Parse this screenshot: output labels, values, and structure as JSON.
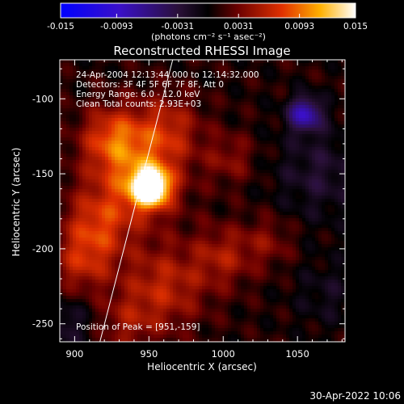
{
  "chart_data": {
    "type": "heatmap",
    "title": "Reconstructed RHESSI Image",
    "xlabel": "Heliocentric X (arcsec)",
    "ylabel": "Heliocentric Y (arcsec)",
    "xlim": [
      890,
      1082
    ],
    "ylim": [
      -262,
      -74
    ],
    "x_ticks": [
      900,
      950,
      1000,
      1050
    ],
    "y_ticks": [
      -100,
      -150,
      -200,
      -250
    ],
    "x_tick_labels": [
      "900",
      "950",
      "1000",
      "1050"
    ],
    "y_tick_labels": [
      "-100",
      "-150",
      "-200",
      "-250"
    ],
    "colorbar": {
      "range": [
        -0.015,
        0.015
      ],
      "ticks": [
        -0.015,
        -0.0093,
        -0.0031,
        0.0031,
        0.0093,
        0.015
      ],
      "tick_labels": [
        "-0.015",
        "-0.0093",
        "-0.0031",
        "0.0031",
        "0.0093",
        "0.015"
      ],
      "label": "(photons cm⁻² s⁻¹ asec⁻²)"
    },
    "annotations": [
      "24-Apr-2004 12:13:44.000 to 12:14:32.000",
      "Detectors: 3F 4F 5F 6F 7F 8F, Att 0",
      "Energy Range: 6.0 - 12.0 keV",
      "Clean    Total counts: 2.93E+03"
    ],
    "peak_label": "Position of Peak = [951,-159]",
    "peak": [
      951,
      -159
    ],
    "limb_line": [
      [
        917,
        -262
      ],
      [
        966,
        -74
      ]
    ],
    "sources": [
      {
        "x": 951,
        "y": -159,
        "sigma": 9,
        "amp": 0.016
      },
      {
        "x": 940,
        "y": -150,
        "sigma": 22,
        "amp": 0.0065
      },
      {
        "x": 925,
        "y": -125,
        "sigma": 14,
        "amp": 0.0055
      },
      {
        "x": 962,
        "y": -120,
        "sigma": 16,
        "amp": 0.0045
      },
      {
        "x": 915,
        "y": -185,
        "sigma": 16,
        "amp": 0.0055
      },
      {
        "x": 905,
        "y": -210,
        "sigma": 14,
        "amp": 0.0045
      },
      {
        "x": 960,
        "y": -225,
        "sigma": 20,
        "amp": 0.005
      },
      {
        "x": 1000,
        "y": -205,
        "sigma": 14,
        "amp": 0.004
      },
      {
        "x": 1030,
        "y": -195,
        "sigma": 12,
        "amp": 0.0028
      },
      {
        "x": 1005,
        "y": -140,
        "sigma": 12,
        "amp": 0.003
      },
      {
        "x": 935,
        "y": -250,
        "sigma": 14,
        "amp": 0.003
      },
      {
        "x": 1055,
        "y": -110,
        "sigma": 8,
        "amp": -0.009
      },
      {
        "x": 1065,
        "y": -150,
        "sigma": 22,
        "amp": -0.003
      },
      {
        "x": 1070,
        "y": -230,
        "sigma": 16,
        "amp": -0.002
      },
      {
        "x": 895,
        "y": -250,
        "sigma": 12,
        "amp": -0.003
      }
    ]
  },
  "timestamp": "30-Apr-2022 10:06"
}
